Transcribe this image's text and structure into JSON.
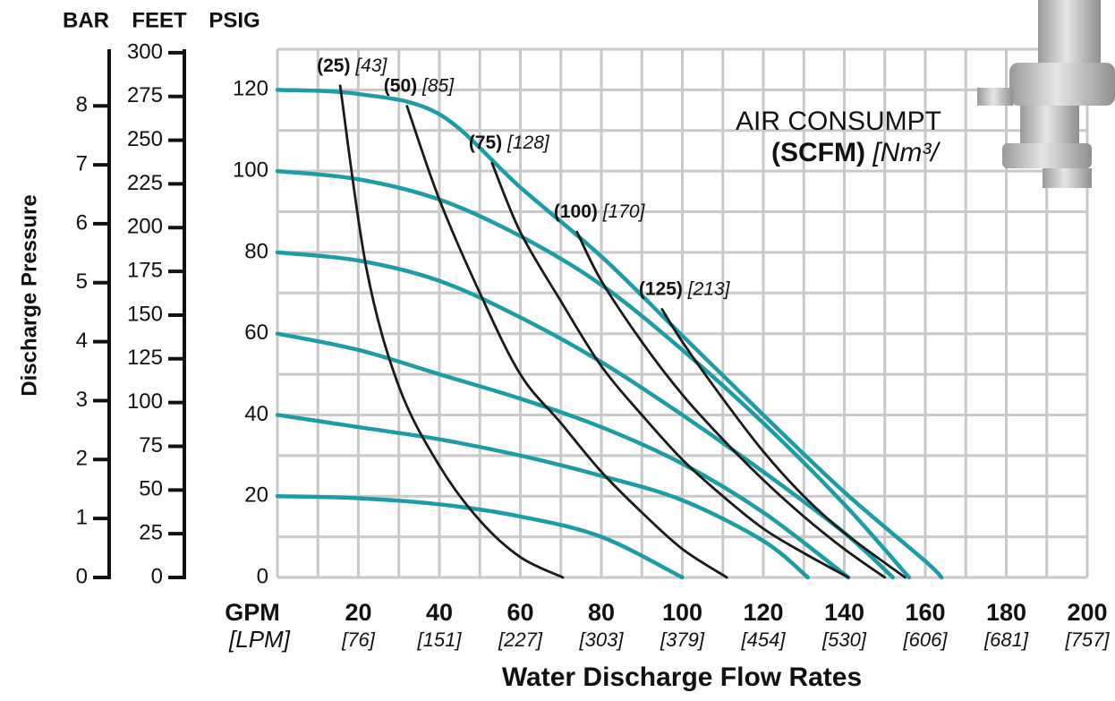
{
  "chart_data": {
    "type": "line",
    "title": "AIR CONSUMPT",
    "subtitle_bold": "(SCFM)",
    "subtitle_italic": "[Nm³/",
    "xlabel": "Water Discharge Flow Rates",
    "ylabel": "Discharge Pressure",
    "x_unit": "GPM",
    "x_unit_metric": "[LPM]",
    "y_unit": "PSIG",
    "xlim": [
      0,
      200
    ],
    "ylim": [
      0,
      130
    ],
    "xticks": [
      20,
      40,
      60,
      80,
      100,
      120,
      140,
      160,
      180,
      200
    ],
    "xticks_metric": [
      "[76]",
      "[151]",
      "[227]",
      "[303]",
      "[379]",
      "[454]",
      "[530]",
      "[606]",
      "[681]",
      "[757]"
    ],
    "yticks": [
      0,
      20,
      40,
      60,
      80,
      100,
      120
    ],
    "xgrid": [
      0,
      10,
      20,
      30,
      40,
      50,
      60,
      70,
      80,
      90,
      100,
      110,
      120,
      130,
      140,
      150,
      160,
      170,
      180,
      190,
      200
    ],
    "ygrid": [
      0,
      10,
      20,
      30,
      40,
      50,
      60,
      70,
      80,
      90,
      100,
      110,
      120,
      130
    ],
    "grid": true,
    "bar_axis": {
      "label": "BAR",
      "lim": [
        0,
        8.96
      ],
      "ticks": [
        0,
        1,
        2,
        3,
        4,
        5,
        6,
        7,
        8
      ]
    },
    "feet_axis": {
      "label": "FEET",
      "lim": [
        0,
        302
      ],
      "ticks": [
        0,
        25,
        50,
        75,
        100,
        125,
        150,
        175,
        200,
        225,
        250,
        275,
        300
      ]
    },
    "series": [
      {
        "color": "#1d9da3",
        "x": [
          0,
          20,
          40,
          60,
          80,
          100,
          120,
          140,
          160,
          164
        ],
        "values": [
          120,
          119,
          114,
          96,
          79,
          59.5,
          40,
          21,
          4,
          0
        ]
      },
      {
        "color": "#1d9da3",
        "x": [
          0,
          20,
          40,
          60,
          80,
          100,
          120,
          140,
          156
        ],
        "values": [
          100,
          98,
          93,
          84,
          72,
          56,
          38,
          18,
          0
        ]
      },
      {
        "color": "#1d9da3",
        "x": [
          0,
          20,
          40,
          60,
          80,
          100,
          120,
          140,
          152
        ],
        "values": [
          80,
          78,
          73,
          64,
          53,
          40,
          26,
          11,
          0
        ]
      },
      {
        "color": "#1d9da3",
        "x": [
          0,
          20,
          40,
          60,
          80,
          100,
          120,
          141
        ],
        "values": [
          60,
          56,
          50,
          44,
          37,
          28,
          16,
          0
        ]
      },
      {
        "color": "#1d9da3",
        "x": [
          0,
          20,
          40,
          60,
          80,
          100,
          120,
          131
        ],
        "values": [
          40,
          37,
          34,
          30,
          25,
          19,
          9,
          0
        ]
      },
      {
        "color": "#1d9da3",
        "x": [
          0,
          20,
          40,
          60,
          80,
          100
        ],
        "values": [
          20,
          19.5,
          18,
          15,
          10,
          0
        ]
      },
      {
        "name": "(25)",
        "name_metric": "[43]",
        "color": "#1a1a1a",
        "x": [
          15.5,
          22,
          30,
          40,
          50,
          60,
          70.5
        ],
        "values": [
          121,
          76,
          47,
          27.5,
          14,
          5,
          0
        ]
      },
      {
        "name": "(50)",
        "name_metric": "[85]",
        "color": "#1a1a1a",
        "x": [
          32,
          40,
          50,
          60,
          70,
          80,
          90,
          100,
          111
        ],
        "values": [
          116,
          93,
          70,
          50,
          38,
          26,
          16,
          7,
          0
        ]
      },
      {
        "name": "(75)",
        "name_metric": "[128]",
        "color": "#1a1a1a",
        "x": [
          53,
          60,
          70,
          80,
          90,
          100,
          110,
          120,
          130,
          141
        ],
        "values": [
          102,
          85,
          68,
          52,
          40,
          29,
          20,
          12,
          6,
          0
        ]
      },
      {
        "name": "(100)",
        "name_metric": "[170]",
        "color": "#1a1a1a",
        "x": [
          74,
          80,
          90,
          100,
          110,
          120,
          130,
          140,
          150
        ],
        "values": [
          85,
          73,
          58,
          45,
          34,
          24,
          15,
          7,
          0
        ]
      },
      {
        "name": "(125)",
        "name_metric": "[213]",
        "color": "#1a1a1a",
        "x": [
          95,
          100,
          110,
          120,
          130,
          140,
          155
        ],
        "values": [
          66,
          58,
          44,
          31,
          20,
          11,
          0
        ]
      }
    ]
  }
}
